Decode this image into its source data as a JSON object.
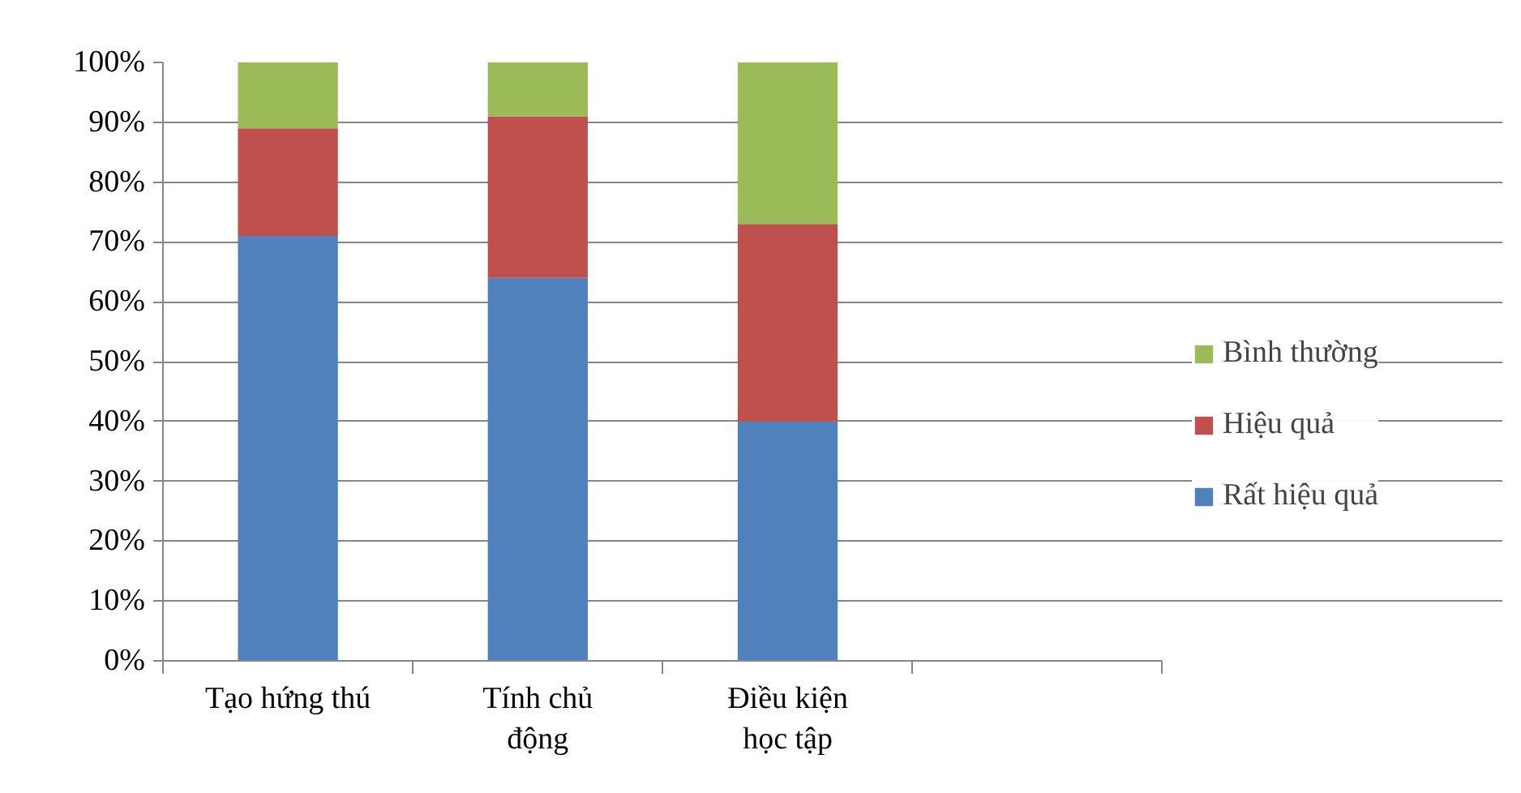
{
  "chart_data": {
    "type": "bar",
    "stacked": true,
    "categories": [
      "Tạo hứng thú",
      "Tính chủ động",
      "Điều kiện học tập",
      null
    ],
    "series": [
      {
        "name": "Rất hiệu quả",
        "color": "#4f81bd",
        "values": [
          71,
          64,
          40,
          null
        ]
      },
      {
        "name": "Hiệu quả",
        "color": "#c0504d",
        "values": [
          18,
          27,
          33,
          null
        ]
      },
      {
        "name": "Bình thường",
        "color": "#9bbb59",
        "values": [
          11,
          9,
          27,
          null
        ]
      }
    ],
    "ylim": [
      0,
      100
    ],
    "yticks": [
      {
        "value": 0,
        "label": "0%"
      },
      {
        "value": 10,
        "label": "10%"
      },
      {
        "value": 20,
        "label": "20%"
      },
      {
        "value": 30,
        "label": "30%"
      },
      {
        "value": 40,
        "label": "40%"
      },
      {
        "value": 50,
        "label": "50%"
      },
      {
        "value": 60,
        "label": "60%"
      },
      {
        "value": 70,
        "label": "70%"
      },
      {
        "value": 80,
        "label": "80%"
      },
      {
        "value": 90,
        "label": "90%"
      },
      {
        "value": 100,
        "label": "100%"
      }
    ],
    "grid": "y",
    "legend": "right"
  }
}
